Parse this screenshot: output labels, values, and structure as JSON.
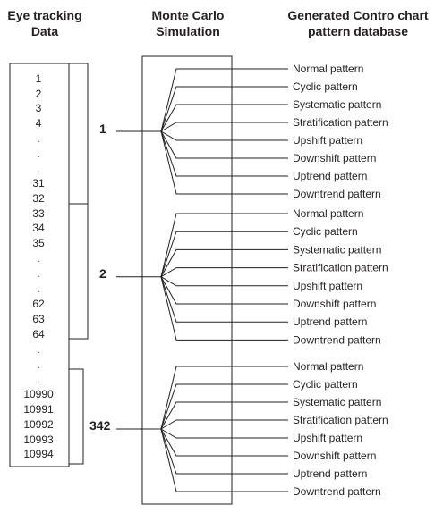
{
  "headers": {
    "eye_tracking": [
      "Eye tracking",
      "Data"
    ],
    "monte_carlo": [
      "Monte Carlo",
      "Simulation"
    ],
    "database": [
      "Generated Contro chart",
      "pattern database"
    ]
  },
  "data_list": [
    "1",
    "2",
    "3",
    "4",
    ".",
    ".",
    ".",
    "31",
    "32",
    "33",
    "34",
    "35",
    ".",
    ".",
    ".",
    "62",
    "63",
    "64",
    ".",
    ".",
    ".",
    "10990",
    "10991",
    "10992",
    "10993",
    "10994"
  ],
  "groups": [
    {
      "label": "1",
      "patterns": [
        "Normal pattern",
        "Cyclic pattern",
        "Systematic pattern",
        "Stratification pattern",
        "Upshift pattern",
        "Downshift pattern",
        "Uptrend pattern",
        "Downtrend pattern"
      ]
    },
    {
      "label": "2",
      "patterns": [
        "Normal pattern",
        "Cyclic pattern",
        "Systematic pattern",
        "Stratification pattern",
        "Upshift pattern",
        "Downshift pattern",
        "Uptrend pattern",
        "Downtrend pattern"
      ]
    },
    {
      "label": "342",
      "patterns": [
        "Normal pattern",
        "Cyclic pattern",
        "Systematic pattern",
        "Stratification pattern",
        "Upshift pattern",
        "Downshift pattern",
        "Uptrend pattern",
        "Downtrend pattern"
      ]
    }
  ]
}
